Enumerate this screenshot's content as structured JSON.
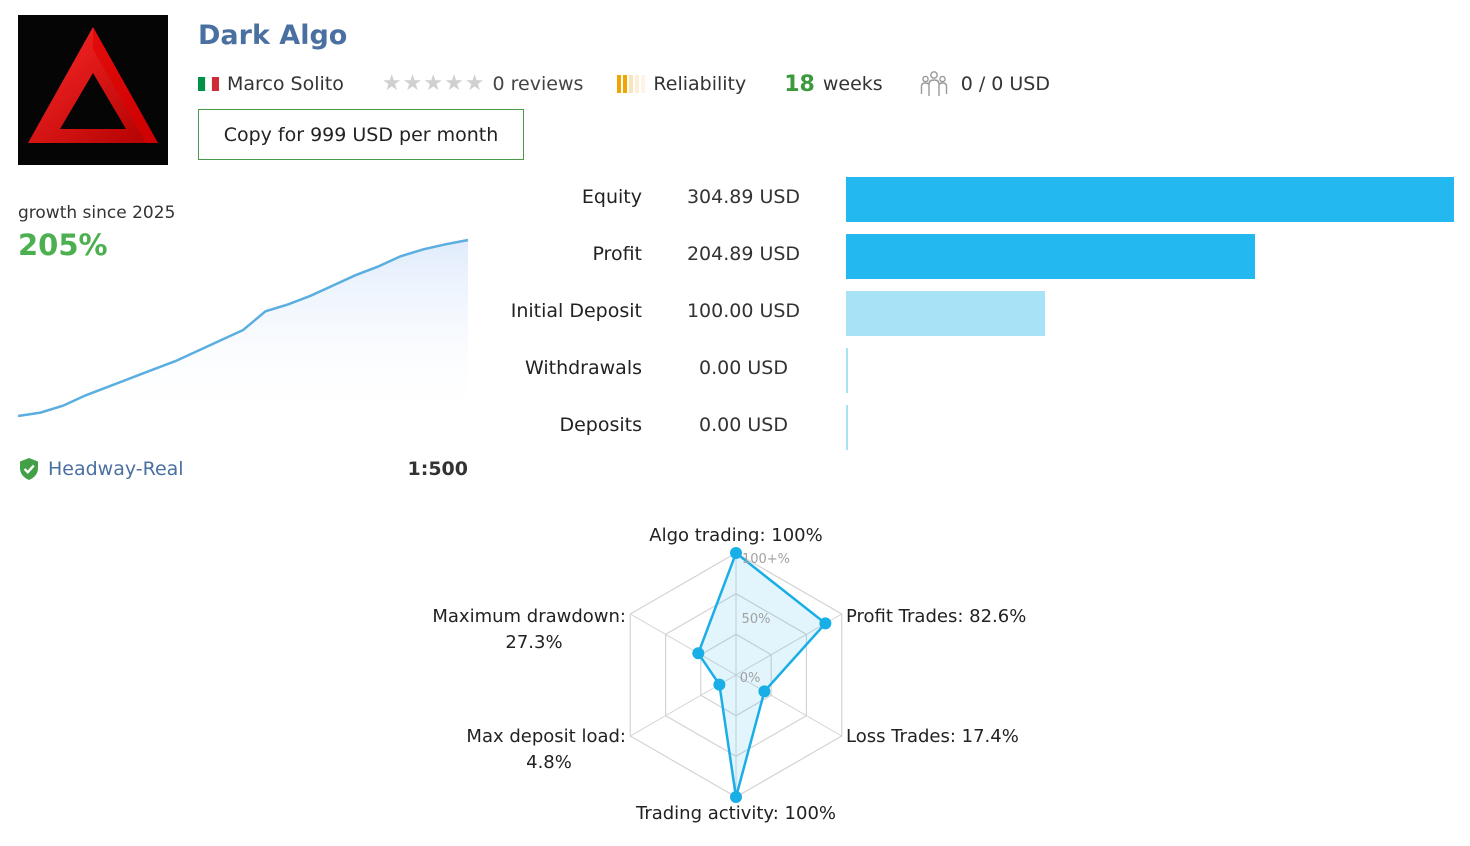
{
  "signal": {
    "title": "Dark Algo",
    "author": "Marco Solito",
    "author_flag_colors": [
      "#009246",
      "#ffffff",
      "#ce2b37"
    ],
    "reviews_text": "0 reviews",
    "rating_stars": 0,
    "reliability_label": "Reliability",
    "weeks_value": "18",
    "weeks_label": "weeks",
    "subscribers_text": "0 / 0 USD",
    "copy_button_label": "Copy for 999 USD per month"
  },
  "growth": {
    "label": "growth since 2025",
    "value": "205%",
    "chart_data": {
      "type": "area",
      "x": [
        0,
        1,
        2,
        3,
        4,
        5,
        6,
        7,
        8,
        9,
        10,
        11,
        12,
        13,
        14,
        15,
        16,
        17,
        18,
        19,
        20
      ],
      "values": [
        0,
        4,
        12,
        24,
        34,
        44,
        54,
        64,
        76,
        88,
        100,
        122,
        130,
        140,
        152,
        164,
        174,
        186,
        194,
        200,
        205
      ],
      "color": "#5aaee0"
    }
  },
  "account": {
    "server": "Headway-Real",
    "leverage": "1:500"
  },
  "balance": {
    "rows": [
      {
        "label": "Equity",
        "value": "304.89 USD",
        "amount": 304.89,
        "color": "#23b8ef"
      },
      {
        "label": "Profit",
        "value": "204.89 USD",
        "amount": 204.89,
        "color": "#23b8ef"
      },
      {
        "label": "Initial Deposit",
        "value": "100.00 USD",
        "amount": 100.0,
        "color": "#a8e2f7"
      },
      {
        "label": "Withdrawals",
        "value": "0.00 USD",
        "amount": 0,
        "color": "#a8e2f7"
      },
      {
        "label": "Deposits",
        "value": "0.00 USD",
        "amount": 0,
        "color": "#a8e2f7"
      }
    ]
  },
  "radar": {
    "chart_data": {
      "type": "radar",
      "axes": [
        "Algo trading",
        "Profit Trades",
        "Loss Trades",
        "Trading activity",
        "Max deposit load",
        "Maximum drawdown"
      ],
      "values": [
        100,
        82.6,
        17.4,
        100,
        4.8,
        27.3
      ],
      "ticks": [
        "100+%",
        "50%",
        "0%"
      ],
      "color": "#1aaee6"
    },
    "labels": {
      "algo": "Algo trading: 100%",
      "profit": "Profit Trades: 82.6%",
      "loss": "Loss Trades: 17.4%",
      "activity": "Trading activity: 100%",
      "load_1": "Max deposit load:",
      "load_2": "4.8%",
      "dd_1": "Maximum drawdown:",
      "dd_2": "27.3%"
    }
  }
}
